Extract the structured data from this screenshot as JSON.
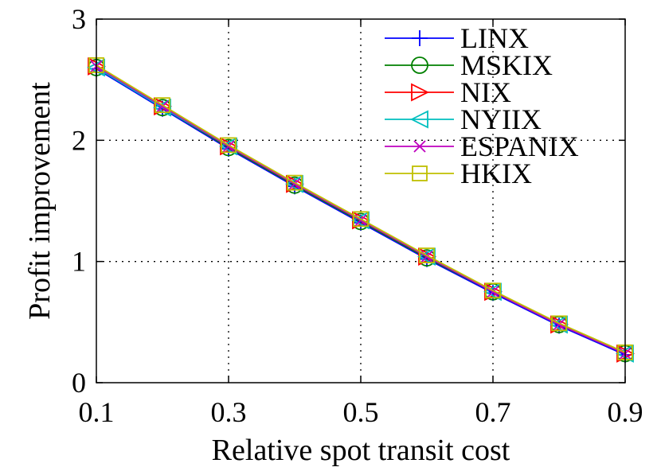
{
  "chart_data": {
    "type": "line",
    "xlabel": "Relative spot transit cost",
    "ylabel": "Profit improvement",
    "xlim": [
      0.1,
      0.9
    ],
    "ylim": [
      0,
      3
    ],
    "x_ticks": [
      "0.1",
      "0.3",
      "0.5",
      "0.7",
      "0.9"
    ],
    "y_ticks": [
      "0",
      "1",
      "2",
      "3"
    ],
    "grid": true,
    "legend_position": "top-right",
    "x": [
      0.1,
      0.2,
      0.3,
      0.4,
      0.5,
      0.6,
      0.7,
      0.8,
      0.9
    ],
    "series": [
      {
        "name": "LINX",
        "color": "#0000ff",
        "marker": "plus",
        "values": [
          2.59,
          2.26,
          1.93,
          1.62,
          1.32,
          1.02,
          0.74,
          0.47,
          0.23
        ]
      },
      {
        "name": "MSKIX",
        "color": "#008000",
        "marker": "circle",
        "values": [
          2.6,
          2.27,
          1.94,
          1.63,
          1.33,
          1.03,
          0.75,
          0.48,
          0.24
        ]
      },
      {
        "name": "NIX",
        "color": "#ff0000",
        "marker": "triangle-right",
        "values": [
          2.61,
          2.28,
          1.95,
          1.64,
          1.34,
          1.04,
          0.75,
          0.48,
          0.24
        ]
      },
      {
        "name": "NYIIX",
        "color": "#00bfbf",
        "marker": "triangle-left",
        "values": [
          2.6,
          2.27,
          1.95,
          1.64,
          1.34,
          1.04,
          0.75,
          0.48,
          0.24
        ]
      },
      {
        "name": "ESPANIX",
        "color": "#bf00bf",
        "marker": "x",
        "values": [
          2.61,
          2.28,
          1.95,
          1.64,
          1.34,
          1.04,
          0.75,
          0.48,
          0.24
        ]
      },
      {
        "name": "HKIX",
        "color": "#bfbf00",
        "marker": "square",
        "values": [
          2.62,
          2.29,
          1.96,
          1.65,
          1.35,
          1.05,
          0.76,
          0.49,
          0.25
        ]
      }
    ]
  }
}
